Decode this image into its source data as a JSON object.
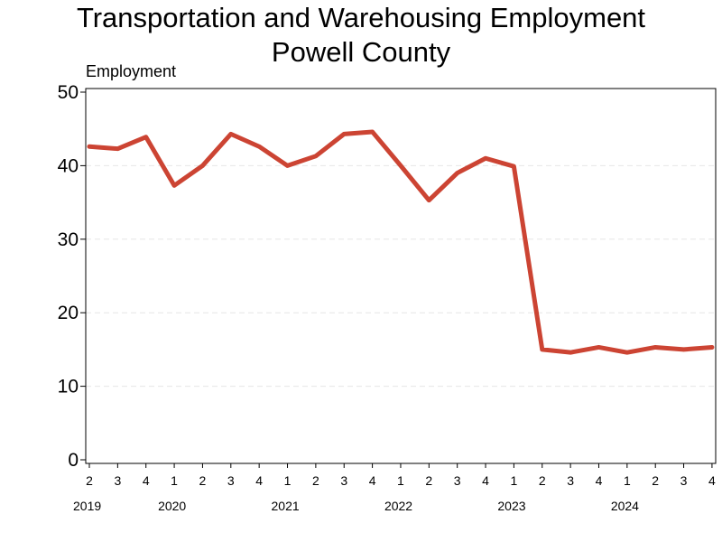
{
  "chart_data": {
    "type": "line",
    "title": "Transportation and Warehousing Employment",
    "subtitle": "Powell County",
    "ylabel": "Employment",
    "xlabel": "",
    "ylim": [
      0,
      50
    ],
    "yticks": [
      0,
      10,
      20,
      30,
      40,
      50
    ],
    "grid": true,
    "legend": "none",
    "color": "#cc4433",
    "x_quarter_labels": [
      "2",
      "3",
      "4",
      "1",
      "2",
      "3",
      "4",
      "1",
      "2",
      "3",
      "4",
      "1",
      "2",
      "3",
      "4",
      "1",
      "2",
      "3",
      "4",
      "1",
      "2",
      "3",
      "4"
    ],
    "x_year_labels": [
      "2019",
      "2020",
      "2021",
      "2022",
      "2023",
      "2024"
    ],
    "x_year_label_quarter_index": [
      0,
      3,
      7,
      11,
      15,
      19
    ],
    "series": [
      {
        "values": [
          42.6,
          42.3,
          43.9,
          37.3,
          40.0,
          44.3,
          42.6,
          40.0,
          41.3,
          44.3,
          44.6,
          40.0,
          35.3,
          39.0,
          41.0,
          39.9,
          15.0,
          14.6,
          15.3,
          14.6,
          15.3,
          15.0,
          15.3
        ]
      }
    ]
  }
}
